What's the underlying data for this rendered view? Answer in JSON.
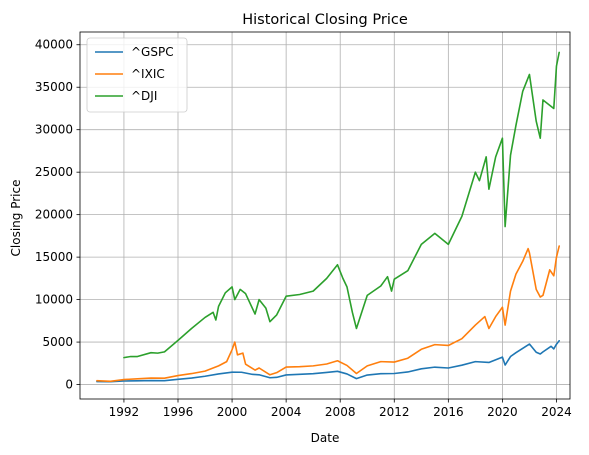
{
  "chart_data": {
    "type": "line",
    "title": "Historical Closing Price",
    "xlabel": "Date",
    "ylabel": "Closing Price",
    "xlim": [
      1988.75,
      2025.0
    ],
    "ylim": [
      -1700,
      41500
    ],
    "x_ticks": [
      1992,
      1996,
      2000,
      2004,
      2008,
      2012,
      2016,
      2020,
      2024
    ],
    "y_ticks": [
      0,
      5000,
      10000,
      15000,
      20000,
      25000,
      30000,
      35000,
      40000
    ],
    "grid": true,
    "legend_position": "upper-left",
    "series": [
      {
        "name": "^GSPC",
        "color": "#1f77b4",
        "points": [
          [
            1990.0,
            350
          ],
          [
            1991.0,
            330
          ],
          [
            1992.0,
            420
          ],
          [
            1993.0,
            440
          ],
          [
            1994.0,
            470
          ],
          [
            1995.0,
            460
          ],
          [
            1996.0,
            620
          ],
          [
            1997.0,
            760
          ],
          [
            1998.0,
            980
          ],
          [
            1999.0,
            1250
          ],
          [
            2000.0,
            1460
          ],
          [
            2000.7,
            1450
          ],
          [
            2001.5,
            1200
          ],
          [
            2002.0,
            1150
          ],
          [
            2002.8,
            800
          ],
          [
            2003.3,
            850
          ],
          [
            2004.0,
            1130
          ],
          [
            2005.0,
            1200
          ],
          [
            2006.0,
            1280
          ],
          [
            2007.0,
            1430
          ],
          [
            2007.8,
            1560
          ],
          [
            2008.5,
            1250
          ],
          [
            2009.2,
            700
          ],
          [
            2010.0,
            1120
          ],
          [
            2011.0,
            1280
          ],
          [
            2012.0,
            1300
          ],
          [
            2013.0,
            1480
          ],
          [
            2014.0,
            1850
          ],
          [
            2015.0,
            2050
          ],
          [
            2016.0,
            1950
          ],
          [
            2017.0,
            2280
          ],
          [
            2018.0,
            2700
          ],
          [
            2019.0,
            2600
          ],
          [
            2020.0,
            3230
          ],
          [
            2020.2,
            2300
          ],
          [
            2020.6,
            3300
          ],
          [
            2021.0,
            3750
          ],
          [
            2022.0,
            4770
          ],
          [
            2022.5,
            3800
          ],
          [
            2022.8,
            3600
          ],
          [
            2023.0,
            3850
          ],
          [
            2023.6,
            4500
          ],
          [
            2023.8,
            4200
          ],
          [
            2024.0,
            4750
          ],
          [
            2024.2,
            5150
          ]
        ]
      },
      {
        "name": "^IXIC",
        "color": "#ff7f0e",
        "points": [
          [
            1990.0,
            450
          ],
          [
            1991.0,
            380
          ],
          [
            1992.0,
            590
          ],
          [
            1993.0,
            680
          ],
          [
            1994.0,
            770
          ],
          [
            1995.0,
            750
          ],
          [
            1996.0,
            1060
          ],
          [
            1997.0,
            1290
          ],
          [
            1998.0,
            1580
          ],
          [
            1999.0,
            2200
          ],
          [
            1999.6,
            2700
          ],
          [
            2000.0,
            4100
          ],
          [
            2000.2,
            5000
          ],
          [
            2000.4,
            3500
          ],
          [
            2000.8,
            3700
          ],
          [
            2001.0,
            2400
          ],
          [
            2001.7,
            1700
          ],
          [
            2002.0,
            1950
          ],
          [
            2002.8,
            1150
          ],
          [
            2003.3,
            1400
          ],
          [
            2004.0,
            2060
          ],
          [
            2005.0,
            2100
          ],
          [
            2006.0,
            2200
          ],
          [
            2007.0,
            2420
          ],
          [
            2007.8,
            2800
          ],
          [
            2008.5,
            2250
          ],
          [
            2009.2,
            1300
          ],
          [
            2010.0,
            2200
          ],
          [
            2011.0,
            2700
          ],
          [
            2012.0,
            2650
          ],
          [
            2013.0,
            3100
          ],
          [
            2014.0,
            4150
          ],
          [
            2015.0,
            4700
          ],
          [
            2016.0,
            4600
          ],
          [
            2017.0,
            5400
          ],
          [
            2018.0,
            7000
          ],
          [
            2018.7,
            8000
          ],
          [
            2019.0,
            6600
          ],
          [
            2019.5,
            8000
          ],
          [
            2020.0,
            9100
          ],
          [
            2020.2,
            7000
          ],
          [
            2020.6,
            11000
          ],
          [
            2021.0,
            13000
          ],
          [
            2021.5,
            14500
          ],
          [
            2021.9,
            16000
          ],
          [
            2022.0,
            15500
          ],
          [
            2022.5,
            11200
          ],
          [
            2022.8,
            10300
          ],
          [
            2023.0,
            10500
          ],
          [
            2023.5,
            13500
          ],
          [
            2023.8,
            12800
          ],
          [
            2024.0,
            15000
          ],
          [
            2024.2,
            16300
          ]
        ]
      },
      {
        "name": "^DJI",
        "color": "#2ca02c",
        "points": [
          [
            1992.0,
            3170
          ],
          [
            1992.5,
            3300
          ],
          [
            1993.0,
            3300
          ],
          [
            1994.0,
            3750
          ],
          [
            1994.5,
            3700
          ],
          [
            1995.0,
            3850
          ],
          [
            1996.0,
            5200
          ],
          [
            1997.0,
            6600
          ],
          [
            1998.0,
            7900
          ],
          [
            1998.6,
            8500
          ],
          [
            1998.8,
            7600
          ],
          [
            1999.0,
            9200
          ],
          [
            1999.5,
            10800
          ],
          [
            2000.0,
            11500
          ],
          [
            2000.2,
            10000
          ],
          [
            2000.6,
            11200
          ],
          [
            2001.0,
            10700
          ],
          [
            2001.7,
            8300
          ],
          [
            2002.0,
            10000
          ],
          [
            2002.5,
            9000
          ],
          [
            2002.8,
            7400
          ],
          [
            2003.3,
            8200
          ],
          [
            2004.0,
            10400
          ],
          [
            2005.0,
            10600
          ],
          [
            2006.0,
            11000
          ],
          [
            2007.0,
            12500
          ],
          [
            2007.8,
            14100
          ],
          [
            2008.2,
            12500
          ],
          [
            2008.5,
            11500
          ],
          [
            2008.9,
            8500
          ],
          [
            2009.2,
            6600
          ],
          [
            2010.0,
            10500
          ],
          [
            2011.0,
            11600
          ],
          [
            2011.5,
            12700
          ],
          [
            2011.8,
            11000
          ],
          [
            2012.0,
            12400
          ],
          [
            2013.0,
            13400
          ],
          [
            2014.0,
            16500
          ],
          [
            2015.0,
            17800
          ],
          [
            2016.0,
            16500
          ],
          [
            2017.0,
            19800
          ],
          [
            2018.0,
            25000
          ],
          [
            2018.3,
            24000
          ],
          [
            2018.8,
            26800
          ],
          [
            2019.0,
            23000
          ],
          [
            2019.5,
            26800
          ],
          [
            2020.0,
            29000
          ],
          [
            2020.2,
            18600
          ],
          [
            2020.6,
            27000
          ],
          [
            2021.0,
            30500
          ],
          [
            2021.5,
            34500
          ],
          [
            2022.0,
            36500
          ],
          [
            2022.5,
            31000
          ],
          [
            2022.8,
            29000
          ],
          [
            2023.0,
            33500
          ],
          [
            2023.4,
            33000
          ],
          [
            2023.8,
            32500
          ],
          [
            2024.0,
            37500
          ],
          [
            2024.2,
            39100
          ]
        ]
      }
    ]
  }
}
